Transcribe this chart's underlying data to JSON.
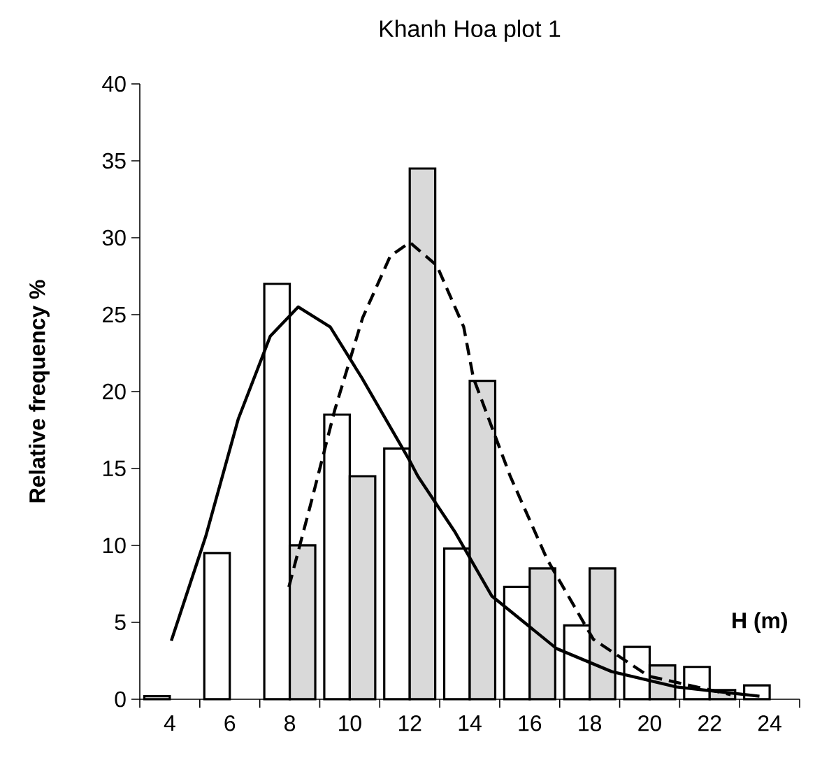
{
  "chart_data": {
    "type": "bar",
    "title": "Khanh Hoa plot 1",
    "xlabel": "H (m)",
    "ylabel": "Relative frequency %",
    "x": [
      4,
      6,
      8,
      10,
      12,
      14,
      16,
      18,
      20,
      22,
      24
    ],
    "series": [
      {
        "color": "#ffffff",
        "values": [
          0.2,
          9.5,
          27,
          18.5,
          16.3,
          9.8,
          7.3,
          4.8,
          3.4,
          2.1,
          0.9
        ]
      },
      {
        "color": "#d9d9d9",
        "values": [
          null,
          null,
          10,
          14.5,
          34.5,
          20.7,
          8.5,
          8.5,
          2.2,
          0.6,
          null
        ]
      },
      {
        "type": "line",
        "color": "#000000",
        "line_style": "solid",
        "x": [
          4.05,
          5.2,
          6.28,
          7.35,
          8.28,
          9.35,
          10.4,
          12.0,
          12.27,
          13.5,
          14.74,
          16.89,
          18.73,
          20.89,
          23.66
        ],
        "values": [
          3.8,
          10.6,
          18.2,
          23.6,
          25.5,
          24.2,
          20.9,
          15.5,
          14.5,
          10.9,
          6.7,
          3.3,
          1.8,
          0.8,
          0.2
        ]
      },
      {
        "type": "line",
        "color": "#000000",
        "line_style": "dashed",
        "x": [
          7.97,
          8.74,
          9.5,
          10.43,
          11.35,
          12.0,
          12.9,
          13.8,
          14.12,
          15.35,
          16.58,
          18.12,
          19.97,
          22.7
        ],
        "values": [
          7.3,
          13.0,
          18.8,
          24.8,
          28.8,
          29.7,
          28.2,
          24.2,
          20.9,
          14.5,
          9.1,
          3.9,
          1.5,
          0.3
        ]
      }
    ],
    "xlim": [
      3,
      25
    ],
    "xticks": [
      4,
      6,
      8,
      10,
      12,
      14,
      16,
      18,
      20,
      22,
      24,
      {
        "value": 3,
        "label": null
      },
      {
        "value": 5,
        "label": null
      },
      {
        "value": 7,
        "label": null
      },
      {
        "value": 9,
        "label": null
      },
      {
        "value": 11,
        "label": null
      },
      {
        "value": 13,
        "label": null
      },
      {
        "value": 15,
        "label": null
      },
      {
        "value": 17,
        "label": null
      },
      {
        "value": 19,
        "label": null
      },
      {
        "value": 21,
        "label": null
      },
      {
        "value": 23,
        "label": null
      },
      {
        "value": 25,
        "label": null
      }
    ],
    "ylim": [
      0,
      40
    ],
    "yticks": [
      0,
      5,
      10,
      15,
      20,
      25,
      30,
      35,
      40
    ]
  }
}
